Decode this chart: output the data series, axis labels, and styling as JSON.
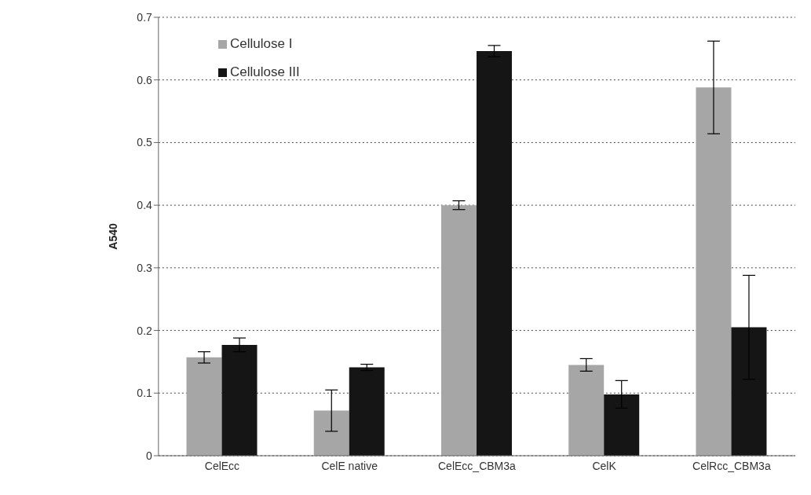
{
  "chart_data": {
    "type": "bar",
    "ylabel": "A540",
    "categories": [
      "CelEcc",
      "CelE native",
      "CelEcc_CBM3a",
      "CelK",
      "CelRcc_CBM3a"
    ],
    "series": [
      {
        "name": "Cellulose I",
        "color": "#a6a6a6",
        "values": [
          0.157,
          0.072,
          0.4,
          0.145,
          0.588
        ],
        "errors": [
          0.009,
          0.033,
          0.007,
          0.01,
          0.074
        ]
      },
      {
        "name": "Cellulose III",
        "color": "#151515",
        "values": [
          0.177,
          0.141,
          0.646,
          0.098,
          0.205
        ],
        "errors": [
          0.011,
          0.005,
          0.009,
          0.022,
          0.083
        ]
      }
    ],
    "ylim": [
      0,
      0.7
    ],
    "yticks": [
      0,
      0.1,
      0.2,
      0.3,
      0.4,
      0.5,
      0.6,
      0.7
    ],
    "grid": "y",
    "legend": "top left"
  }
}
